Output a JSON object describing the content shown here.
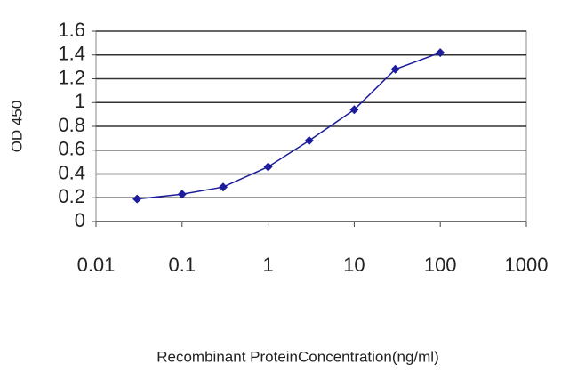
{
  "chart_data": {
    "type": "line",
    "x_label": "Recombinant ProteinConcentration(ng/ml)",
    "y_label": "OD 450",
    "x": [
      0.03,
      0.1,
      0.3,
      1,
      3,
      10,
      30,
      100
    ],
    "series": [
      {
        "name": "OD 450",
        "color": "#1c1c9c",
        "values": [
          0.19,
          0.23,
          0.29,
          0.46,
          0.68,
          0.94,
          1.28,
          1.42
        ]
      }
    ],
    "xscale": "log",
    "xlim": [
      0.01,
      1000
    ],
    "xticks": [
      0.01,
      0.1,
      1,
      10,
      100,
      1000
    ],
    "ylim": [
      0,
      1.6
    ],
    "yticks": [
      0,
      0.2,
      0.4,
      0.6,
      0.8,
      1,
      1.2,
      1.4,
      1.6
    ],
    "grid": true
  }
}
